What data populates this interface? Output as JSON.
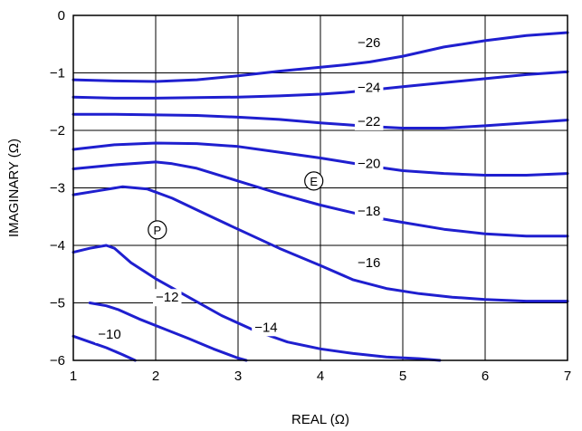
{
  "chart_data": {
    "type": "line",
    "title": "",
    "xlabel": "REAL (Ω)",
    "ylabel": "IMAGINARY (Ω)",
    "xlim": [
      1,
      7
    ],
    "ylim": [
      -6,
      0
    ],
    "x_ticks": [
      "1",
      "2",
      "3",
      "4",
      "5",
      "6",
      "7"
    ],
    "y_ticks": [
      "0",
      "−1",
      "−2",
      "−3",
      "−4",
      "−5",
      "−6"
    ],
    "grid": true,
    "line_color": "#1f1fcf",
    "series": [
      {
        "label": "−26",
        "label_at": [
          4.45,
          -0.55
        ],
        "x": [
          1.0,
          1.5,
          2.0,
          2.5,
          3.0,
          3.5,
          4.0,
          4.3,
          4.6,
          5.0,
          5.5,
          6.0,
          6.5,
          7.0
        ],
        "y": [
          -1.12,
          -1.14,
          -1.15,
          -1.12,
          -1.05,
          -0.97,
          -0.9,
          -0.86,
          -0.81,
          -0.71,
          -0.55,
          -0.44,
          -0.35,
          -0.3
        ]
      },
      {
        "label": "−24",
        "label_at": [
          4.45,
          -1.33
        ],
        "x": [
          1.0,
          1.5,
          2.0,
          2.5,
          3.0,
          3.5,
          4.0,
          4.3,
          4.6,
          5.0,
          5.5,
          6.0,
          6.5,
          7.0
        ],
        "y": [
          -1.42,
          -1.44,
          -1.44,
          -1.43,
          -1.42,
          -1.4,
          -1.37,
          -1.34,
          -1.3,
          -1.24,
          -1.17,
          -1.1,
          -1.03,
          -0.98
        ]
      },
      {
        "label": "−22",
        "label_at": [
          4.45,
          -1.92
        ],
        "x": [
          1.0,
          1.5,
          2.0,
          2.5,
          3.0,
          3.5,
          4.0,
          4.3,
          4.6,
          5.0,
          5.5,
          6.0,
          6.5,
          7.0
        ],
        "y": [
          -1.72,
          -1.72,
          -1.73,
          -1.74,
          -1.77,
          -1.81,
          -1.87,
          -1.9,
          -1.93,
          -1.96,
          -1.96,
          -1.92,
          -1.87,
          -1.82
        ]
      },
      {
        "label": "−20",
        "label_at": [
          4.45,
          -2.65
        ],
        "x": [
          1.0,
          1.5,
          2.0,
          2.5,
          3.0,
          3.5,
          4.0,
          4.3,
          4.6,
          5.0,
          5.5,
          6.0,
          6.5,
          7.0
        ],
        "y": [
          -2.33,
          -2.25,
          -2.22,
          -2.23,
          -2.28,
          -2.38,
          -2.48,
          -2.55,
          -2.62,
          -2.7,
          -2.75,
          -2.78,
          -2.78,
          -2.75
        ]
      },
      {
        "label": "−18",
        "label_at": [
          4.45,
          -3.48
        ],
        "x": [
          1.0,
          1.5,
          2.0,
          2.2,
          2.5,
          3.0,
          3.5,
          4.0,
          4.3,
          4.6,
          5.0,
          5.5,
          6.0,
          6.5,
          7.0
        ],
        "y": [
          -2.67,
          -2.6,
          -2.55,
          -2.58,
          -2.66,
          -2.88,
          -3.1,
          -3.3,
          -3.4,
          -3.5,
          -3.6,
          -3.72,
          -3.8,
          -3.84,
          -3.84
        ]
      },
      {
        "label": "−16",
        "label_at": [
          4.45,
          -4.38
        ],
        "x": [
          1.0,
          1.3,
          1.6,
          1.9,
          2.2,
          2.6,
          3.0,
          3.5,
          4.0,
          4.4,
          4.8,
          5.2,
          5.6,
          6.0,
          6.5,
          7.0
        ],
        "y": [
          -3.12,
          -3.05,
          -2.98,
          -3.02,
          -3.18,
          -3.45,
          -3.72,
          -4.05,
          -4.35,
          -4.6,
          -4.75,
          -4.84,
          -4.9,
          -4.94,
          -4.97,
          -4.97
        ]
      },
      {
        "label": "−14",
        "label_at": [
          3.2,
          -5.5
        ],
        "x": [
          1.0,
          1.2,
          1.4,
          1.5,
          1.7,
          2.0,
          2.4,
          2.8,
          3.2,
          3.6,
          4.0,
          4.4,
          4.8,
          5.2,
          5.45
        ],
        "y": [
          -4.12,
          -4.05,
          -4.0,
          -4.05,
          -4.3,
          -4.58,
          -4.9,
          -5.22,
          -5.48,
          -5.68,
          -5.8,
          -5.88,
          -5.94,
          -5.97,
          -6.0
        ]
      },
      {
        "label": "−12",
        "label_at": [
          2.0,
          -4.98
        ],
        "x": [
          1.2,
          1.4,
          1.55,
          1.8,
          2.1,
          2.4,
          2.7,
          3.0,
          3.1
        ],
        "y": [
          -5.0,
          -5.05,
          -5.12,
          -5.28,
          -5.45,
          -5.62,
          -5.8,
          -5.96,
          -6.0
        ]
      },
      {
        "label": "−10",
        "label_at": [
          1.3,
          -5.62
        ],
        "x": [
          1.0,
          1.2,
          1.4,
          1.6,
          1.75
        ],
        "y": [
          -5.58,
          -5.68,
          -5.78,
          -5.9,
          -6.0
        ]
      }
    ],
    "annotations": [
      {
        "text": "E",
        "x": 3.92,
        "y": -2.88
      },
      {
        "text": "P",
        "x": 2.02,
        "y": -3.73
      }
    ]
  }
}
